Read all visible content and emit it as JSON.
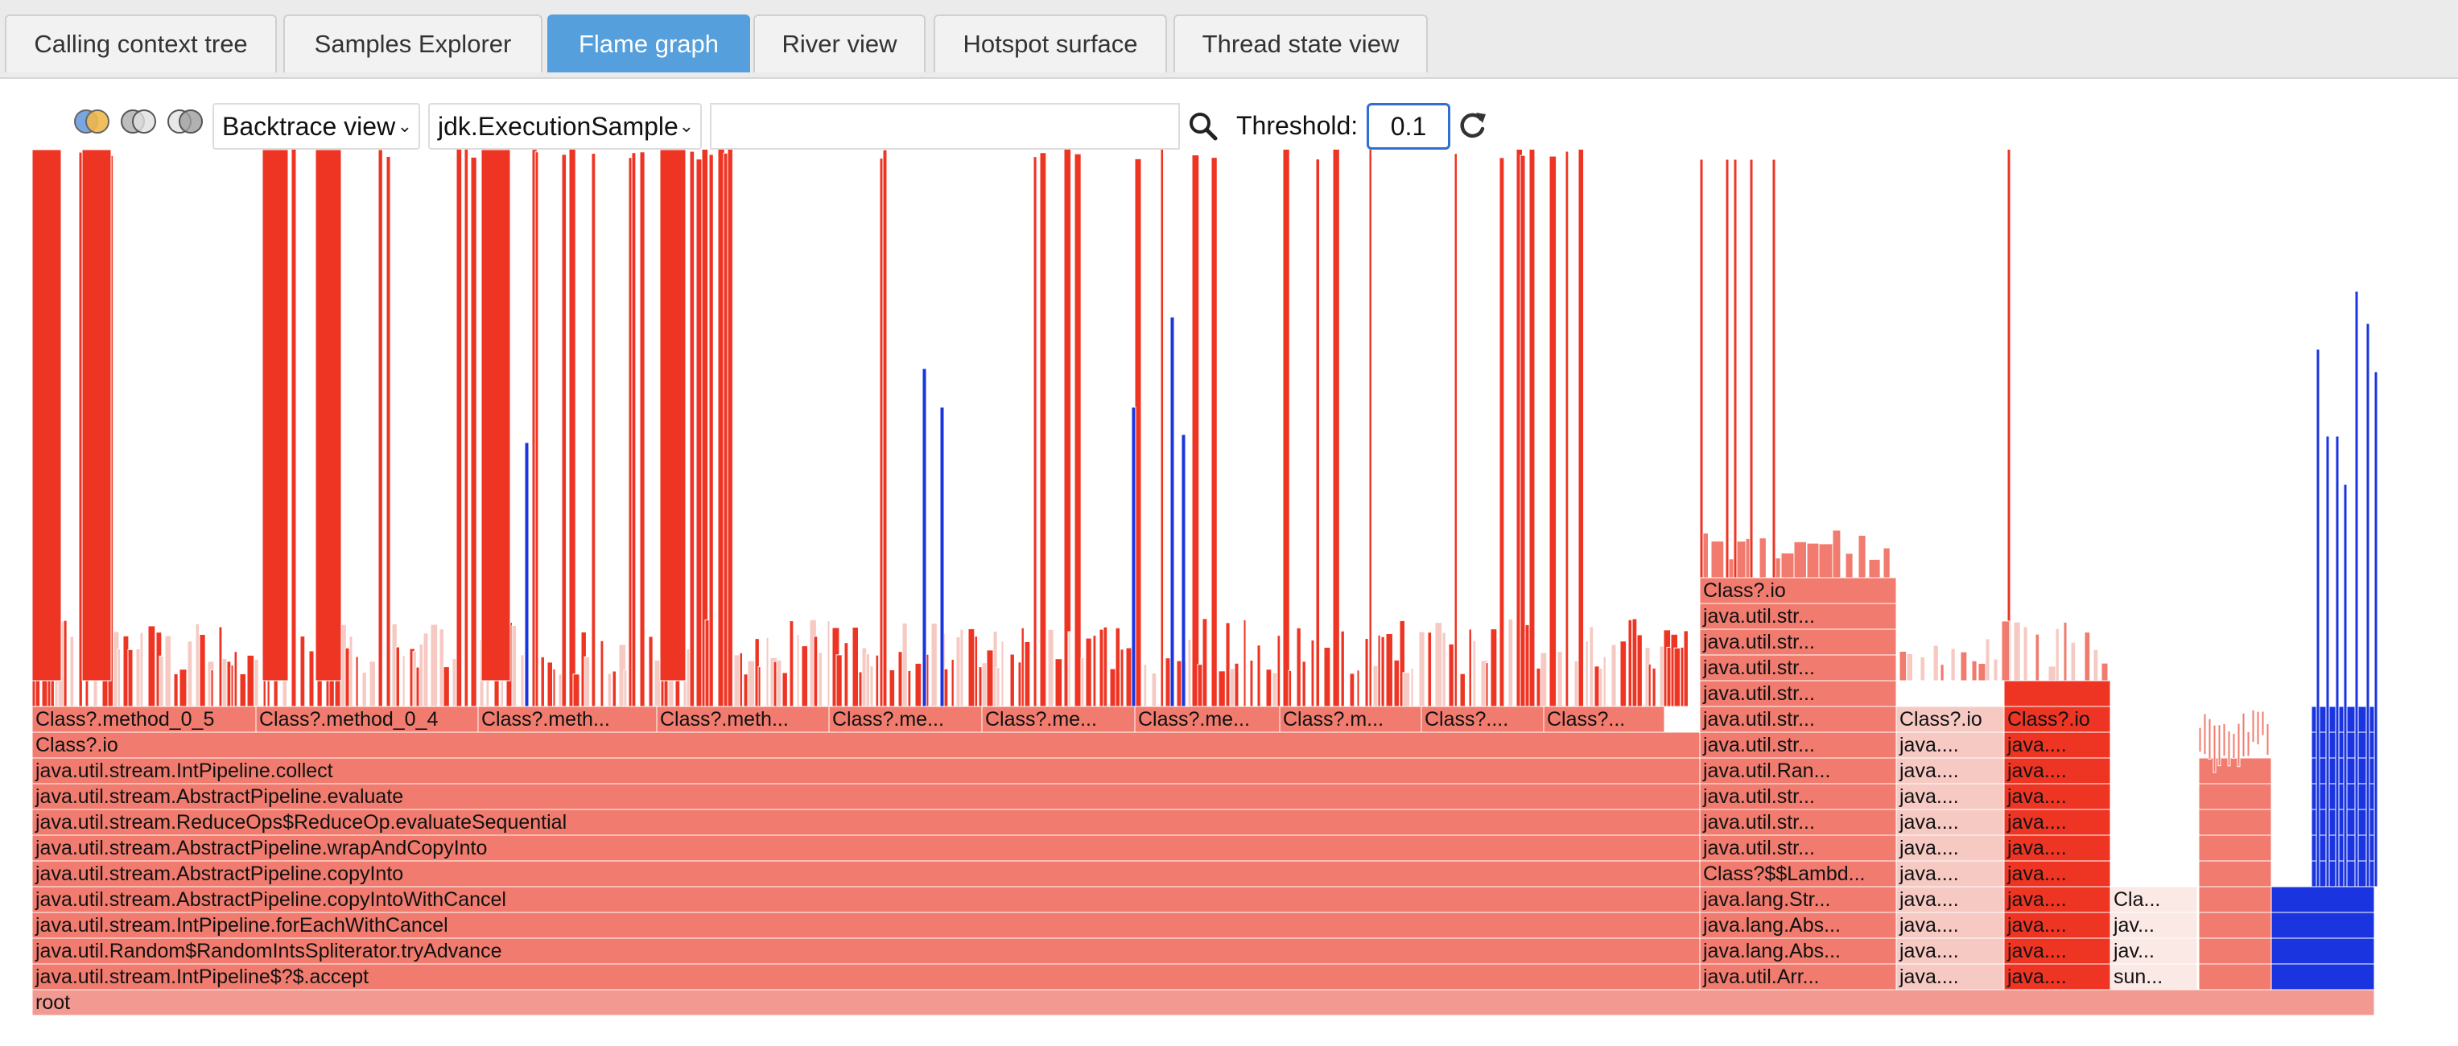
{
  "tabs": [
    {
      "label": "Calling context tree",
      "active": false
    },
    {
      "label": "Samples Explorer",
      "active": false
    },
    {
      "label": "Flame graph",
      "active": true
    },
    {
      "label": "River view",
      "active": false
    },
    {
      "label": "Hotspot surface",
      "active": false
    },
    {
      "label": "Thread state view",
      "active": false
    }
  ],
  "toolbar": {
    "view_select": "Backtrace view",
    "event_select": "jdk.ExecutionSample",
    "search_value": "",
    "threshold_label": "Threshold:",
    "threshold_value": "0.1",
    "icons": [
      "diff-toggle-icon-1",
      "diff-toggle-icon-2",
      "diff-toggle-icon-3",
      "search-icon",
      "refresh-icon"
    ]
  },
  "colors": {
    "active_tab": "#55a0dc",
    "frame_hot": "#ee3524",
    "frame_warm": "#f07b6e",
    "frame_root": "#f29a91",
    "frame_blue": "#1a34e0",
    "frame_light": "#f6c9c3"
  },
  "flame": {
    "stack_left": [
      "root",
      "java.util.stream.IntPipeline$?$.accept",
      "java.util.Random$RandomIntsSpliterator.tryAdvance",
      "java.util.stream.IntPipeline.forEachWithCancel",
      "java.util.stream.AbstractPipeline.copyIntoWithCancel",
      "java.util.stream.AbstractPipeline.copyInto",
      "java.util.stream.AbstractPipeline.wrapAndCopyInto",
      "java.util.stream.ReduceOps$ReduceOp.evaluateSequential",
      "java.util.stream.AbstractPipeline.evaluate",
      "java.util.stream.IntPipeline.collect",
      "Class?.io"
    ],
    "method_row": [
      "Class?.method_0_5",
      "Class?.method_0_4",
      "Class?.meth...",
      "Class?.meth...",
      "Class?.me...",
      "Class?.me...",
      "Class?.me...",
      "Class?.m...",
      "Class?....",
      "Class?..."
    ],
    "stack_mid": [
      "java.util.Arr...",
      "java.lang.Abs...",
      "java.lang.Abs...",
      "java.lang.Str...",
      "Class?$$Lambd...",
      "java.util.str...",
      "java.util.str...",
      "java.util.str...",
      "java.util.Ran...",
      "java.util.str...",
      "java.util.str...",
      "java.util.str...",
      "java.util.str...",
      "java.util.str...",
      "java.util.str...",
      "Class?.io"
    ],
    "stack_col2": [
      "java....",
      "java....",
      "java....",
      "java....",
      "java....",
      "java....",
      "java....",
      "java....",
      "java....",
      "java....",
      "Class?.io"
    ],
    "stack_col3": [
      "java....",
      "java....",
      "java....",
      "java....",
      "java....",
      "java....",
      "java....",
      "java....",
      "java....",
      "java....",
      "Class?.io"
    ],
    "stack_col4": [
      "sun...",
      "jav...",
      "jav...",
      "Cla..."
    ]
  }
}
